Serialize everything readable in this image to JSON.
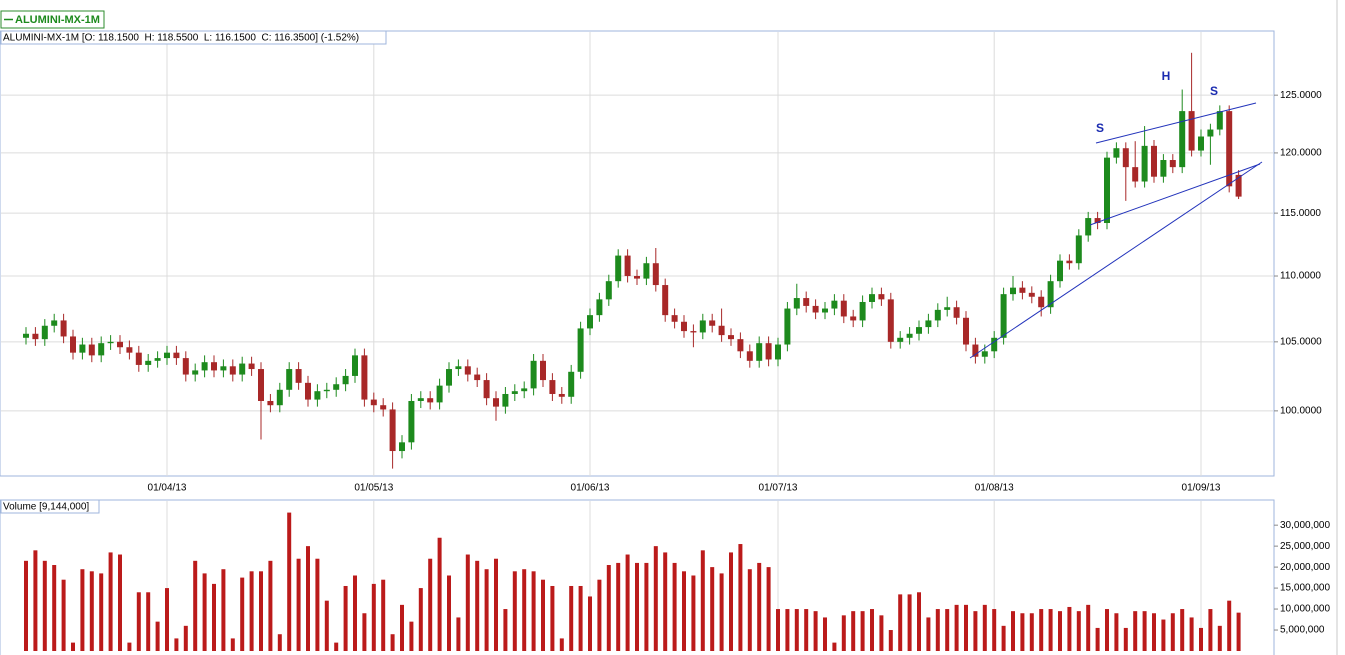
{
  "chart_data": [
    {
      "type": "candlestick",
      "title": "ALUMINI-MX-1M",
      "subtitle": "ALUMINI-MX-1M [O: 118.1500  H: 118.5500  L: 116.1500  C: 116.3500] (-1.52%)",
      "x": [
        "2013-03-11",
        "2013-03-12",
        "2013-03-13",
        "2013-03-14",
        "2013-03-15",
        "2013-03-18",
        "2013-03-19",
        "2013-03-20",
        "2013-03-21",
        "2013-03-22",
        "2013-03-25",
        "2013-03-26",
        "2013-03-27",
        "2013-03-28",
        "2013-03-29",
        "2013-04-01",
        "2013-04-02",
        "2013-04-03",
        "2013-04-04",
        "2013-04-05",
        "2013-04-08",
        "2013-04-09",
        "2013-04-10",
        "2013-04-11",
        "2013-04-12",
        "2013-04-15",
        "2013-04-16",
        "2013-04-17",
        "2013-04-18",
        "2013-04-19",
        "2013-04-22",
        "2013-04-23",
        "2013-04-24",
        "2013-04-25",
        "2013-04-26",
        "2013-04-29",
        "2013-04-30",
        "2013-05-01",
        "2013-05-02",
        "2013-05-03",
        "2013-05-06",
        "2013-05-07",
        "2013-05-08",
        "2013-05-09",
        "2013-05-10",
        "2013-05-13",
        "2013-05-14",
        "2013-05-15",
        "2013-05-16",
        "2013-05-17",
        "2013-05-20",
        "2013-05-21",
        "2013-05-22",
        "2013-05-23",
        "2013-05-24",
        "2013-05-27",
        "2013-05-28",
        "2013-05-29",
        "2013-05-30",
        "2013-05-31",
        "2013-06-03",
        "2013-06-04",
        "2013-06-05",
        "2013-06-06",
        "2013-06-07",
        "2013-06-10",
        "2013-06-11",
        "2013-06-12",
        "2013-06-13",
        "2013-06-14",
        "2013-06-17",
        "2013-06-18",
        "2013-06-19",
        "2013-06-20",
        "2013-06-21",
        "2013-06-24",
        "2013-06-25",
        "2013-06-26",
        "2013-06-27",
        "2013-06-28",
        "2013-07-01",
        "2013-07-02",
        "2013-07-03",
        "2013-07-04",
        "2013-07-05",
        "2013-07-08",
        "2013-07-09",
        "2013-07-10",
        "2013-07-11",
        "2013-07-12",
        "2013-07-15",
        "2013-07-16",
        "2013-07-17",
        "2013-07-18",
        "2013-07-19",
        "2013-07-22",
        "2013-07-23",
        "2013-07-24",
        "2013-07-25",
        "2013-07-26",
        "2013-07-29",
        "2013-07-30",
        "2013-07-31",
        "2013-08-01",
        "2013-08-02",
        "2013-08-05",
        "2013-08-06",
        "2013-08-07",
        "2013-08-08",
        "2013-08-09",
        "2013-08-12",
        "2013-08-13",
        "2013-08-14",
        "2013-08-15",
        "2013-08-16",
        "2013-08-19",
        "2013-08-20",
        "2013-08-21",
        "2013-08-22",
        "2013-08-23",
        "2013-08-26",
        "2013-08-27",
        "2013-08-28",
        "2013-08-29",
        "2013-08-30",
        "2013-09-02",
        "2013-09-03",
        "2013-09-04",
        "2013-09-05",
        "2013-09-06"
      ],
      "open": [
        105.3,
        105.6,
        105.2,
        106.2,
        106.6,
        105.4,
        104.2,
        104.8,
        104.0,
        104.9,
        105.0,
        104.6,
        104.2,
        103.3,
        103.6,
        103.8,
        104.2,
        103.8,
        102.6,
        102.9,
        103.5,
        102.9,
        103.2,
        102.6,
        103.4,
        103.0,
        100.7,
        100.4,
        101.5,
        103.0,
        102.0,
        100.8,
        101.4,
        101.5,
        101.9,
        102.5,
        104.0,
        100.8,
        100.4,
        100.1,
        97.2,
        97.8,
        100.7,
        100.9,
        100.6,
        101.8,
        103.0,
        103.2,
        102.6,
        102.2,
        100.9,
        100.3,
        101.2,
        101.4,
        101.6,
        103.6,
        102.2,
        101.2,
        101.0,
        102.8,
        106.0,
        107.0,
        108.2,
        109.6,
        111.6,
        110.0,
        109.8,
        111.0,
        109.3,
        107.0,
        106.5,
        105.8,
        105.7,
        106.6,
        106.2,
        105.5,
        105.2,
        104.3,
        103.6,
        104.9,
        103.7,
        104.8,
        107.5,
        108.3,
        107.7,
        107.2,
        107.5,
        108.1,
        106.9,
        106.6,
        108.0,
        108.6,
        108.2,
        105.0,
        105.3,
        105.6,
        106.1,
        106.6,
        107.4,
        107.6,
        106.8,
        104.8,
        103.9,
        104.3,
        105.3,
        108.6,
        109.1,
        108.7,
        108.4,
        107.6,
        109.6,
        111.2,
        111.0,
        113.2,
        114.6,
        114.2,
        119.6,
        120.4,
        118.8,
        117.6,
        120.6,
        118.0,
        119.4,
        118.8,
        123.6,
        120.2,
        121.4,
        122.0,
        123.6,
        118.15
      ],
      "high": [
        106.1,
        106.1,
        106.7,
        107.1,
        107.1,
        105.9,
        105.3,
        105.3,
        105.4,
        105.5,
        105.5,
        105.1,
        104.7,
        104.1,
        104.3,
        104.7,
        104.7,
        104.3,
        103.4,
        104.0,
        104.0,
        103.7,
        103.7,
        103.9,
        103.9,
        103.5,
        101.2,
        102.0,
        103.5,
        103.5,
        102.5,
        101.9,
        102.0,
        102.4,
        103.0,
        104.5,
        104.5,
        101.3,
        100.9,
        100.6,
        98.3,
        101.2,
        101.4,
        101.4,
        102.3,
        103.5,
        103.7,
        103.7,
        103.1,
        102.7,
        101.4,
        101.7,
        101.9,
        102.1,
        104.1,
        104.1,
        102.7,
        101.7,
        103.3,
        106.5,
        107.5,
        108.7,
        110.1,
        112.1,
        112.1,
        110.5,
        111.5,
        112.2,
        109.8,
        107.5,
        107.0,
        106.3,
        107.1,
        107.1,
        107.5,
        106.0,
        105.7,
        104.8,
        105.4,
        105.4,
        105.3,
        108.0,
        109.4,
        108.8,
        108.2,
        108.0,
        108.6,
        108.6,
        107.4,
        108.5,
        109.1,
        109.1,
        108.7,
        105.8,
        106.1,
        106.6,
        107.1,
        107.9,
        108.4,
        108.1,
        107.3,
        105.3,
        104.8,
        105.8,
        109.1,
        110.0,
        109.6,
        109.2,
        108.9,
        110.1,
        111.7,
        111.7,
        113.7,
        115.1,
        115.1,
        120.1,
        120.9,
        120.9,
        121.0,
        122.3,
        121.1,
        119.9,
        119.9,
        125.5,
        128.8,
        122.0,
        122.5,
        124.1,
        124.1,
        118.55
      ],
      "low": [
        104.8,
        104.7,
        104.7,
        105.7,
        104.9,
        103.7,
        103.7,
        103.5,
        103.5,
        104.4,
        104.1,
        103.7,
        102.8,
        102.8,
        103.1,
        103.3,
        103.3,
        102.1,
        102.1,
        102.4,
        102.4,
        102.4,
        102.1,
        102.1,
        102.5,
        98.0,
        99.9,
        99.9,
        101.0,
        101.5,
        100.3,
        100.3,
        100.9,
        101.0,
        101.4,
        102.0,
        100.3,
        99.9,
        99.6,
        96.0,
        96.7,
        97.3,
        100.2,
        100.1,
        100.1,
        101.3,
        102.5,
        102.1,
        101.7,
        100.4,
        99.3,
        99.8,
        100.7,
        100.9,
        101.1,
        101.7,
        100.7,
        100.5,
        100.5,
        102.3,
        105.5,
        106.5,
        107.7,
        109.1,
        109.5,
        109.3,
        109.3,
        108.8,
        106.5,
        106.0,
        105.3,
        104.6,
        105.2,
        105.7,
        105.0,
        104.7,
        103.8,
        103.1,
        103.1,
        103.2,
        103.2,
        104.3,
        107.0,
        107.2,
        106.7,
        106.7,
        107.0,
        106.4,
        106.1,
        106.1,
        107.5,
        107.7,
        104.5,
        104.5,
        104.8,
        105.1,
        105.6,
        106.1,
        106.9,
        106.3,
        104.3,
        103.4,
        103.4,
        103.8,
        104.8,
        108.1,
        108.2,
        107.9,
        106.9,
        107.1,
        109.1,
        110.5,
        110.5,
        112.7,
        113.7,
        113.7,
        119.1,
        116.0,
        117.1,
        117.1,
        117.5,
        117.5,
        118.3,
        118.3,
        119.7,
        119.7,
        119.0,
        121.5,
        116.7,
        116.15
      ],
      "close": [
        105.6,
        105.2,
        106.2,
        106.6,
        105.4,
        104.2,
        104.8,
        104.0,
        104.9,
        105.0,
        104.6,
        104.2,
        103.3,
        103.6,
        103.8,
        104.2,
        103.8,
        102.6,
        102.9,
        103.5,
        102.9,
        103.2,
        102.6,
        103.4,
        103.0,
        100.7,
        100.4,
        101.5,
        103.0,
        102.0,
        100.8,
        101.4,
        101.5,
        101.9,
        102.5,
        104.0,
        100.8,
        100.4,
        100.1,
        97.2,
        97.8,
        100.7,
        100.9,
        100.6,
        101.8,
        103.0,
        103.2,
        102.6,
        102.2,
        100.9,
        100.3,
        101.2,
        101.4,
        101.6,
        103.6,
        102.2,
        101.2,
        101.0,
        102.8,
        106.0,
        107.0,
        108.2,
        109.6,
        111.6,
        110.0,
        109.8,
        111.0,
        109.3,
        107.0,
        106.5,
        105.8,
        105.7,
        106.6,
        106.2,
        105.5,
        105.2,
        104.3,
        103.6,
        104.9,
        103.7,
        104.8,
        107.5,
        108.3,
        107.7,
        107.2,
        107.5,
        108.1,
        106.9,
        106.6,
        108.0,
        108.6,
        108.2,
        105.0,
        105.3,
        105.6,
        106.1,
        106.6,
        107.4,
        107.6,
        106.8,
        104.8,
        103.9,
        104.3,
        105.3,
        108.6,
        109.1,
        108.7,
        108.4,
        107.6,
        109.6,
        111.2,
        111.0,
        113.2,
        114.6,
        114.2,
        119.6,
        120.4,
        118.8,
        117.6,
        120.6,
        118.0,
        119.4,
        118.8,
        123.6,
        120.2,
        121.4,
        122.0,
        123.6,
        117.2,
        116.35
      ],
      "up_color": "#1d8a1d",
      "down_color": "#a82828",
      "log_scale": true,
      "grid": true,
      "ylim": [
        95.5,
        130.8
      ],
      "yticks": [
        {
          "value": 100,
          "label": "100.0000"
        },
        {
          "value": 105,
          "label": "105.0000"
        },
        {
          "value": 110,
          "label": "110.0000"
        },
        {
          "value": 115,
          "label": "115.0000"
        },
        {
          "value": 120,
          "label": "120.0000"
        },
        {
          "value": 125,
          "label": "125.0000"
        }
      ],
      "xticks": [
        {
          "value": "2013-04-01",
          "label": "01/04/13"
        },
        {
          "value": "2013-05-01",
          "label": "01/05/13"
        },
        {
          "value": "2013-06-01",
          "label": "01/06/13"
        },
        {
          "value": "2013-07-01",
          "label": "01/07/13"
        },
        {
          "value": "2013-08-01",
          "label": "01/08/13"
        },
        {
          "value": "2013-09-01",
          "label": "01/09/13"
        }
      ],
      "annotations": [
        {
          "text": "S"
        },
        {
          "text": "H"
        },
        {
          "text": "S"
        }
      ]
    },
    {
      "type": "bar",
      "title": "Volume [9,144,000]",
      "color": "#bb1a1a",
      "values": [
        21500000,
        24000000,
        21500000,
        20500000,
        17000000,
        2000000,
        19500000,
        19000000,
        18500000,
        23500000,
        23000000,
        2000000,
        14000000,
        14000000,
        7000000,
        15000000,
        3000000,
        6000000,
        21500000,
        18500000,
        16000000,
        19500000,
        3000000,
        17500000,
        19000000,
        19000000,
        21500000,
        4000000,
        33000000,
        22000000,
        25000000,
        22000000,
        12000000,
        2000000,
        15500000,
        18000000,
        9000000,
        16000000,
        17000000,
        4000000,
        11000000,
        7000000,
        15000000,
        22000000,
        27000000,
        18000000,
        8000000,
        23000000,
        21500000,
        19500000,
        22000000,
        10000000,
        19000000,
        19500000,
        19000000,
        17000000,
        15500000,
        3000000,
        15500000,
        15500000,
        13000000,
        17000000,
        20500000,
        21000000,
        23000000,
        21000000,
        21000000,
        25000000,
        23500000,
        21000000,
        19000000,
        18000000,
        24000000,
        20000000,
        18500000,
        23500000,
        25500000,
        19500000,
        21000000,
        20000000,
        10000000,
        10000000,
        10000000,
        10000000,
        9500000,
        8000000,
        2000000,
        8500000,
        9500000,
        9500000,
        10000000,
        8500000,
        5000000,
        13500000,
        13500000,
        14000000,
        8000000,
        10000000,
        10000000,
        11000000,
        11000000,
        9500000,
        11000000,
        10000000,
        6000000,
        9500000,
        9000000,
        9000000,
        10000000,
        10000000,
        9500000,
        10500000,
        9500000,
        11000000,
        5500000,
        10000000,
        9000000,
        5500000,
        9500000,
        9500000,
        9000000,
        7500000,
        9000000,
        10000000,
        8000000,
        5500000,
        10000000,
        6000000,
        12000000,
        9144000
      ],
      "ylim": [
        0,
        36000000
      ],
      "yticks": [
        {
          "value": 5000000,
          "label": "5,000,000"
        },
        {
          "value": 10000000,
          "label": "10,000,000"
        },
        {
          "value": 15000000,
          "label": "15,000,000"
        },
        {
          "value": 20000000,
          "label": "20,000,000"
        },
        {
          "value": 25000000,
          "label": "25,000,000"
        },
        {
          "value": 30000000,
          "label": "30,000,000"
        }
      ]
    }
  ]
}
